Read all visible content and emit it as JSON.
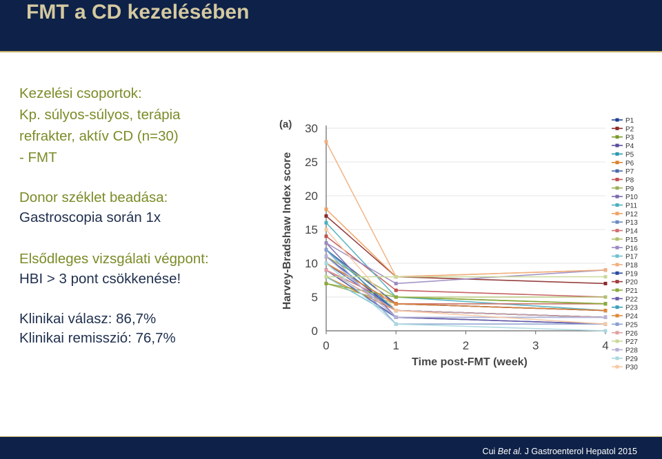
{
  "header": {
    "title": "FMT a CD kezelésében"
  },
  "left_panel": {
    "groups_heading": "Kezelési csoportok:",
    "group_line1": "Kp. súlyos-súlyos, terápia",
    "group_line2": "refrakter, aktív CD (n=30)",
    "group_line3": "- FMT",
    "donor_heading": "Donor széklet beadása:",
    "donor_text": "Gastroscopia során 1x",
    "endpoint_heading": "Elsődleges vizsgálati végpont:",
    "endpoint_text": "HBI > 3 pont csökkenése!",
    "response": "Klinikai válasz:  86,7%",
    "remission": "Klinikai remisszió: 76,7%"
  },
  "footer": {
    "citation_author": "Cui ",
    "citation_etal": "Bet al.",
    "citation_journal": " J Gastroenterol Hepatol 2015"
  },
  "chart_data": {
    "type": "line",
    "panel_label": "(a)",
    "xlabel": "Time post-FMT (week)",
    "ylabel": "Harvey-Bradshaw Index score",
    "xlim": [
      0,
      4
    ],
    "ylim": [
      0,
      30
    ],
    "x_ticks": [
      "0",
      "1",
      "2",
      "3",
      "4"
    ],
    "y_ticks": [
      "0",
      "5",
      "10",
      "15",
      "20",
      "25",
      "30"
    ],
    "x": [
      0,
      1,
      4
    ],
    "legend_position": "right",
    "series": [
      {
        "name": "P1",
        "color": "#1f3f8f",
        "values": [
          12,
          4,
          3
        ]
      },
      {
        "name": "P2",
        "color": "#8b2a2a",
        "values": [
          17,
          8,
          7
        ]
      },
      {
        "name": "P3",
        "color": "#7a9a2a",
        "values": [
          11,
          5,
          4
        ]
      },
      {
        "name": "P4",
        "color": "#5a4a9a",
        "values": [
          10,
          3,
          2
        ]
      },
      {
        "name": "P5",
        "color": "#2a9ab0",
        "values": [
          9,
          2,
          1
        ]
      },
      {
        "name": "P6",
        "color": "#d8822a",
        "values": [
          8,
          3,
          2
        ]
      },
      {
        "name": "P7",
        "color": "#4a6aaa",
        "values": [
          12,
          4,
          3
        ]
      },
      {
        "name": "P8",
        "color": "#c05050",
        "values": [
          14,
          6,
          5
        ]
      },
      {
        "name": "P9",
        "color": "#9ab05a",
        "values": [
          7,
          4,
          4
        ]
      },
      {
        "name": "P10",
        "color": "#7a6aaa",
        "values": [
          13,
          2,
          1
        ]
      },
      {
        "name": "P11",
        "color": "#4ab0c0",
        "values": [
          16,
          5,
          3
        ]
      },
      {
        "name": "P12",
        "color": "#f0a060",
        "values": [
          18,
          8,
          9
        ]
      },
      {
        "name": "P13",
        "color": "#6a8ac0",
        "values": [
          10,
          3,
          2
        ]
      },
      {
        "name": "P14",
        "color": "#d07070",
        "values": [
          9,
          4,
          4
        ]
      },
      {
        "name": "P15",
        "color": "#b0c070",
        "values": [
          11,
          5,
          5
        ]
      },
      {
        "name": "P16",
        "color": "#9a8ac0",
        "values": [
          13,
          7,
          9
        ]
      },
      {
        "name": "P17",
        "color": "#70c0d0",
        "values": [
          8,
          2,
          2
        ]
      },
      {
        "name": "P18",
        "color": "#f0b080",
        "values": [
          28,
          8,
          9
        ]
      },
      {
        "name": "P19",
        "color": "#2a4aa0",
        "values": [
          11,
          3,
          2
        ]
      },
      {
        "name": "P20",
        "color": "#a03a3a",
        "values": [
          10,
          4,
          3
        ]
      },
      {
        "name": "P21",
        "color": "#8aaa3a",
        "values": [
          7,
          5,
          4
        ]
      },
      {
        "name": "P22",
        "color": "#6a5aaa",
        "values": [
          9,
          2,
          1
        ]
      },
      {
        "name": "P23",
        "color": "#3aa0b8",
        "values": [
          12,
          3,
          2
        ]
      },
      {
        "name": "P24",
        "color": "#e08a3a",
        "values": [
          10,
          4,
          3
        ]
      },
      {
        "name": "P25",
        "color": "#8aa0d0",
        "values": [
          12,
          1,
          1
        ]
      },
      {
        "name": "P26",
        "color": "#e0a0a0",
        "values": [
          9,
          3,
          2
        ]
      },
      {
        "name": "P27",
        "color": "#c8d898",
        "values": [
          8,
          8,
          8
        ]
      },
      {
        "name": "P28",
        "color": "#b8b0d8",
        "values": [
          11,
          2,
          2
        ]
      },
      {
        "name": "P29",
        "color": "#a8d8e0",
        "values": [
          10,
          1,
          0
        ]
      },
      {
        "name": "P30",
        "color": "#f8c8a0",
        "values": [
          15,
          3,
          1
        ]
      }
    ]
  }
}
